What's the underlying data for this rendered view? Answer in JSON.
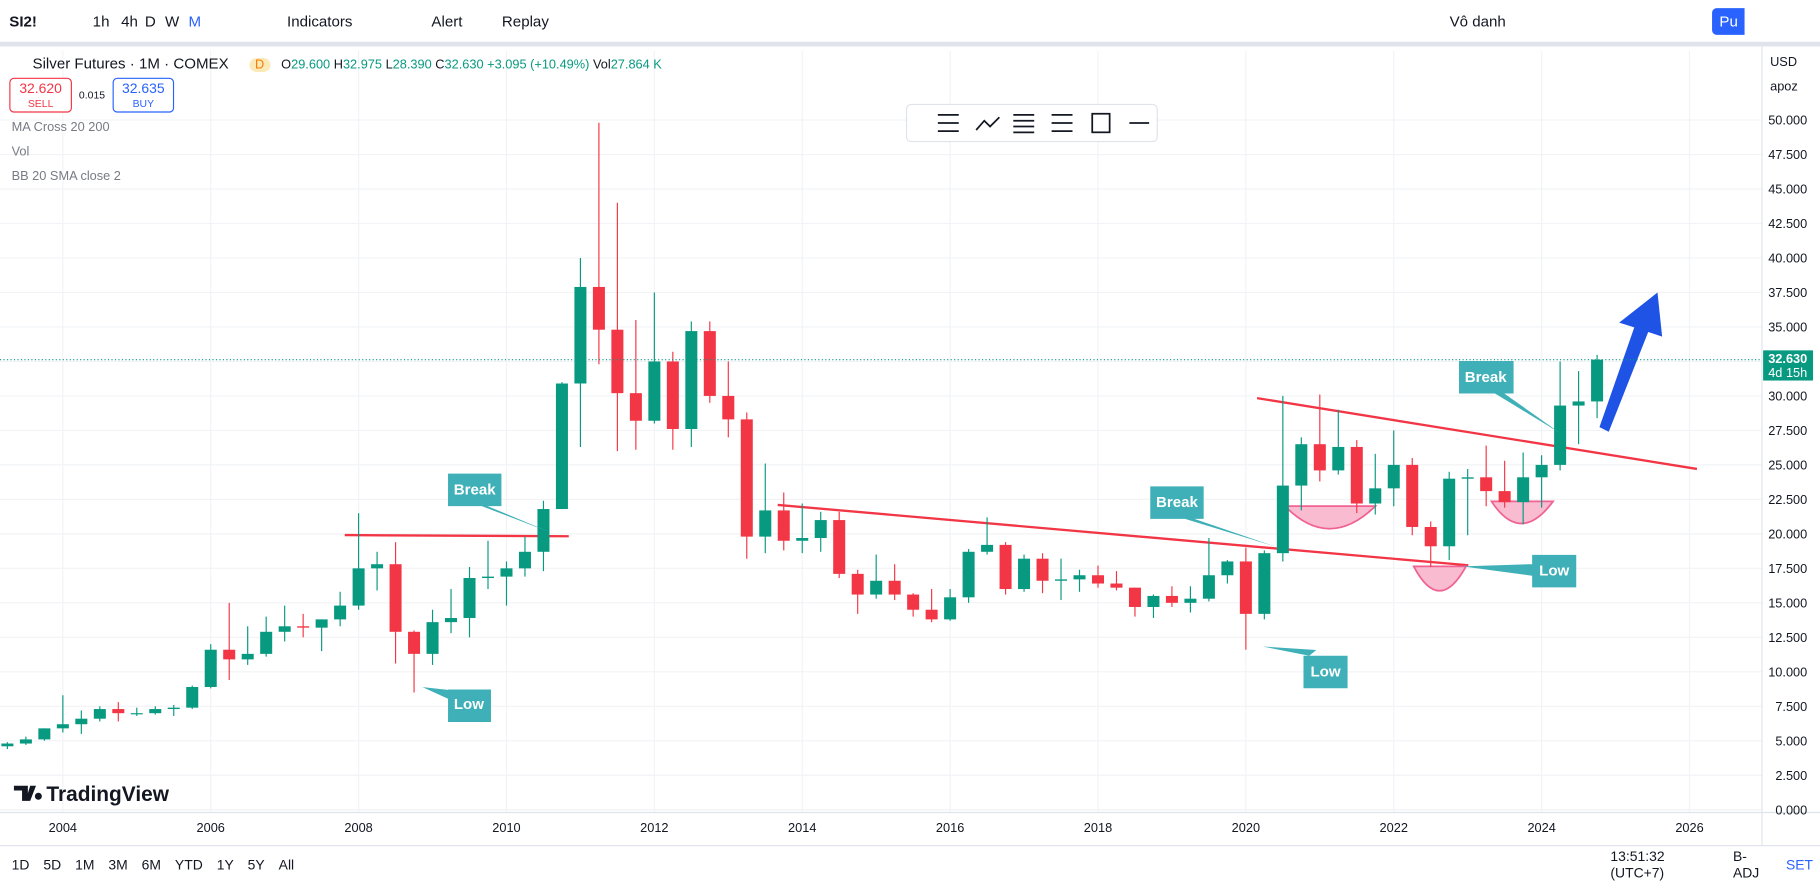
{
  "toolbar": {
    "symbol": "SI2!",
    "intervals": [
      "1h",
      "4h",
      "D",
      "W",
      "M"
    ],
    "indicators": "Indicators",
    "alert": "Alert",
    "replay": "Replay",
    "account": "Vô danh",
    "publish": "Pu"
  },
  "legend": {
    "title": "Silver Futures · 1M · COMEX",
    "flag": "D",
    "ohlc": [
      "O",
      "29.600",
      "H",
      "32.975",
      "L",
      "28.390",
      "C",
      "32.630",
      "+3.095 (+10.49%)",
      "Vol",
      "27.864 K"
    ],
    "sell_price": "32.620",
    "sell": "SELL",
    "spread": "0.015",
    "buy_price": "32.635",
    "buy": "BUY",
    "indicators": [
      "MA Cross 20 200",
      "Vol",
      "BB 20 SMA close 2"
    ]
  },
  "price_axis": {
    "currency": "USD",
    "mode": "apoz"
  },
  "logo": "TradingView",
  "bottom_bar": {
    "ranges": [
      "1D",
      "5D",
      "1M",
      "3M",
      "6M",
      "YTD",
      "1Y",
      "5Y",
      "All"
    ],
    "time": "13:51:32 (UTC+7)",
    "adjust": "B-ADJ",
    "session": "SET"
  },
  "chart_data": {
    "type": "candlestick",
    "up_color": "#089981",
    "down_color": "#f23645",
    "grid": true,
    "x": [
      2003.25,
      2003.5,
      2003.75,
      2004.0,
      2004.25,
      2004.5,
      2004.75,
      2005.0,
      2005.25,
      2005.5,
      2005.75,
      2006.0,
      2006.25,
      2006.5,
      2006.75,
      2007.0,
      2007.25,
      2007.5,
      2007.75,
      2008.0,
      2008.25,
      2008.5,
      2008.75,
      2009.0,
      2009.25,
      2009.5,
      2009.75,
      2010.0,
      2010.25,
      2010.5,
      2010.75,
      2011.0,
      2011.25,
      2011.5,
      2011.75,
      2012.0,
      2012.25,
      2012.5,
      2012.75,
      2013.0,
      2013.25,
      2013.5,
      2013.75,
      2014.0,
      2014.25,
      2014.5,
      2014.75,
      2015.0,
      2015.25,
      2015.5,
      2015.75,
      2016.0,
      2016.25,
      2016.5,
      2016.75,
      2017.0,
      2017.25,
      2017.5,
      2017.75,
      2018.0,
      2018.25,
      2018.5,
      2018.75,
      2019.0,
      2019.25,
      2019.5,
      2019.75,
      2020.0,
      2020.25,
      2020.5,
      2020.75,
      2021.0,
      2021.25,
      2021.5,
      2021.75,
      2022.0,
      2022.25,
      2022.5,
      2022.75,
      2023.0,
      2023.25,
      2023.5,
      2023.75,
      2024.0,
      2024.25,
      2024.5,
      2024.75
    ],
    "open": [
      4.6,
      4.8,
      5.1,
      5.9,
      6.2,
      6.6,
      7.3,
      7.0,
      7.0,
      7.3,
      7.4,
      8.9,
      11.6,
      10.9,
      11.3,
      12.9,
      13.3,
      13.2,
      13.8,
      14.8,
      17.5,
      17.8,
      12.9,
      11.3,
      13.6,
      13.9,
      16.8,
      16.9,
      17.5,
      18.7,
      21.8,
      30.9,
      37.9,
      34.8,
      30.2,
      28.2,
      32.5,
      27.6,
      34.7,
      30.0,
      28.3,
      19.8,
      21.7,
      19.5,
      19.7,
      21.0,
      17.1,
      15.6,
      16.6,
      15.6,
      14.5,
      13.8,
      15.4,
      18.7,
      19.2,
      16.0,
      18.2,
      16.6,
      16.7,
      17.0,
      16.4,
      16.1,
      14.7,
      15.5,
      15.0,
      15.3,
      17.0,
      18.0,
      14.2,
      18.6,
      23.5,
      26.5,
      24.6,
      26.3,
      22.2,
      23.3,
      25.0,
      20.5,
      19.1,
      24.0,
      24.1,
      23.1,
      22.3,
      24.1,
      25.0,
      29.3,
      29.6
    ],
    "high": [
      4.9,
      5.3,
      5.9,
      8.3,
      7.2,
      7.5,
      7.8,
      7.4,
      7.5,
      7.6,
      9.0,
      12.0,
      15.0,
      13.3,
      14.0,
      14.8,
      14.2,
      13.8,
      15.8,
      21.5,
      18.7,
      19.4,
      13.0,
      14.5,
      16.0,
      17.6,
      19.5,
      18.0,
      19.8,
      22.4,
      31.0,
      40.0,
      49.8,
      44.0,
      35.5,
      37.5,
      33.2,
      35.4,
      35.4,
      32.5,
      28.8,
      25.1,
      23.0,
      22.2,
      21.6,
      21.6,
      17.4,
      18.5,
      17.8,
      15.7,
      16.0,
      16.0,
      18.9,
      21.2,
      19.4,
      18.5,
      18.6,
      18.2,
      17.4,
      17.7,
      17.3,
      16.1,
      15.6,
      16.2,
      16.2,
      19.7,
      18.1,
      19.0,
      18.8,
      30.0,
      27.0,
      30.1,
      29.0,
      26.8,
      25.8,
      27.5,
      25.5,
      20.9,
      24.5,
      24.7,
      26.4,
      25.3,
      25.9,
      25.7,
      32.5,
      31.8,
      32.975
    ],
    "low": [
      4.4,
      4.7,
      5.0,
      5.6,
      5.5,
      6.4,
      6.4,
      6.8,
      6.9,
      6.8,
      7.3,
      8.8,
      9.4,
      10.5,
      11.1,
      12.2,
      12.5,
      11.5,
      13.3,
      14.5,
      15.9,
      10.6,
      8.5,
      10.5,
      12.8,
      12.5,
      16.0,
      14.8,
      16.9,
      17.3,
      21.8,
      26.3,
      32.3,
      26.0,
      26.1,
      28.0,
      26.1,
      26.3,
      29.5,
      27.0,
      18.2,
      18.6,
      18.8,
      18.6,
      18.7,
      16.8,
      14.2,
      15.3,
      15.2,
      14.0,
      13.6,
      13.7,
      15.0,
      18.5,
      15.6,
      15.8,
      15.7,
      15.2,
      15.8,
      16.1,
      15.9,
      14.0,
      13.9,
      14.7,
      14.3,
      15.1,
      16.4,
      11.6,
      13.8,
      18.0,
      21.7,
      23.8,
      24.3,
      21.5,
      21.4,
      22.0,
      19.9,
      17.6,
      18.1,
      19.9,
      22.0,
      21.9,
      20.7,
      21.9,
      24.6,
      26.5,
      28.39
    ],
    "close": [
      4.8,
      5.1,
      5.9,
      6.2,
      6.6,
      7.3,
      7.0,
      7.0,
      7.3,
      7.4,
      8.9,
      11.6,
      10.9,
      11.3,
      12.9,
      13.3,
      13.2,
      13.8,
      14.8,
      17.5,
      17.8,
      12.9,
      11.3,
      13.6,
      13.9,
      16.8,
      16.9,
      17.5,
      18.7,
      21.8,
      30.9,
      37.9,
      34.8,
      30.2,
      28.2,
      32.5,
      27.6,
      34.7,
      30.0,
      28.3,
      19.8,
      21.7,
      19.5,
      19.7,
      21.0,
      17.1,
      15.6,
      16.6,
      15.6,
      14.5,
      13.8,
      15.4,
      18.7,
      19.2,
      16.0,
      18.2,
      16.6,
      16.7,
      17.0,
      16.4,
      16.1,
      14.7,
      15.5,
      15.0,
      15.3,
      17.0,
      18.0,
      14.2,
      18.6,
      23.5,
      26.5,
      24.6,
      26.3,
      22.2,
      23.3,
      25.0,
      20.5,
      19.1,
      24.0,
      24.1,
      23.1,
      22.3,
      24.1,
      25.0,
      29.3,
      29.6,
      32.63
    ],
    "xlim": [
      2003.15,
      2026.98
    ],
    "ylim": [
      -0.2,
      55
    ],
    "xticks": [
      2004,
      2006,
      2008,
      2010,
      2012,
      2014,
      2016,
      2018,
      2020,
      2022,
      2024,
      2026
    ],
    "yticks": [
      {
        "value": 0,
        "label": "0.000"
      },
      {
        "value": 2.5,
        "label": "2.500"
      },
      {
        "value": 5,
        "label": "5.000"
      },
      {
        "value": 7.5,
        "label": "7.500"
      },
      {
        "value": 10,
        "label": "10.000"
      },
      {
        "value": 12.5,
        "label": "12.500"
      },
      {
        "value": 15,
        "label": "15.000"
      },
      {
        "value": 17.5,
        "label": "17.500"
      },
      {
        "value": 20,
        "label": "20.000"
      },
      {
        "value": 22.5,
        "label": "22.500"
      },
      {
        "value": 25,
        "label": "25.000"
      },
      {
        "value": 27.5,
        "label": "27.500"
      },
      {
        "value": 30,
        "label": "30.000"
      },
      {
        "value": 32.5,
        "label": "32.500"
      },
      {
        "value": 35,
        "label": "35.000"
      },
      {
        "value": 37.5,
        "label": "37.500"
      },
      {
        "value": 40,
        "label": "40.000"
      },
      {
        "value": 42.5,
        "label": "42.500"
      },
      {
        "value": 45,
        "label": "45.000"
      },
      {
        "value": 47.5,
        "label": "47.500"
      },
      {
        "value": 50,
        "label": "50.000"
      }
    ],
    "last_price": {
      "value": 32.63,
      "label": "32.630"
    },
    "countdown": "4d 15h",
    "annotations": [
      "Break",
      "Low",
      "Break",
      "Low",
      "Low",
      "Break"
    ]
  }
}
